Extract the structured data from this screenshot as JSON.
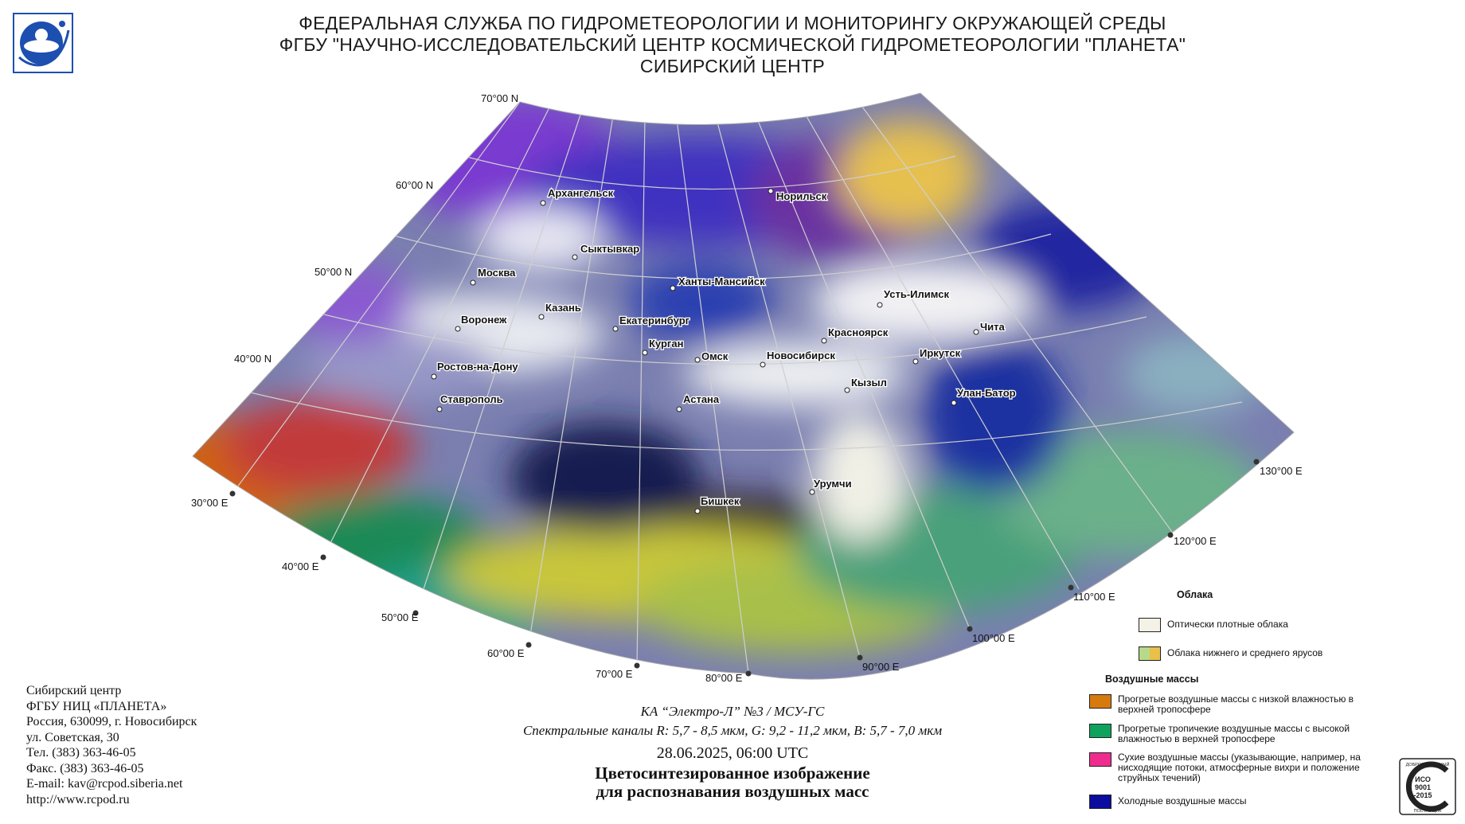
{
  "header": {
    "line1": "ФЕДЕРАЛЬНАЯ СЛУЖБА ПО ГИДРОМЕТЕОРОЛОГИИ И МОНИТОРИНГУ ОКРУЖАЮЩЕЙ СРЕДЫ",
    "line2": "ФГБУ \"НАУЧНО-ИССЛЕДОВАТЕЛЬСКИЙ ЦЕНТР КОСМИЧЕСКОЙ ГИДРОМЕТЕОРОЛОГИИ \"ПЛАНЕТА\"",
    "line3": "СИБИРСКИЙ ЦЕНТР"
  },
  "graticule": {
    "lat_labels": [
      "70°00 N",
      "60°00 N",
      "50°00 N",
      "40°00 N"
    ],
    "lon_labels": [
      "30°00 E",
      "40°00 E",
      "50°00 E",
      "60°00 E",
      "70°00 E",
      "80°00 E",
      "90°00 E",
      "100°00 E",
      "110°00 E",
      "120°00 E",
      "130°00 E"
    ]
  },
  "cities": [
    "Архангельск",
    "Норильск",
    "Сыктывкар",
    "Москва",
    "Ханты-Мансийск",
    "Усть-Илимск",
    "Казань",
    "Воронеж",
    "Екатеринбург",
    "Красноярск",
    "Чита",
    "Курган",
    "Омск",
    "Новосибирск",
    "Иркутск",
    "Ростов-на-Дону",
    "Кызыл",
    "Улан-Батор",
    "Ставрополь",
    "Астана",
    "Урумчи",
    "Бишкек"
  ],
  "contacts": {
    "line1": "Сибирский центр",
    "line2": "ФГБУ НИЦ «ПЛАНЕТА»",
    "line3": "Россия, 630099, г. Новосибирск",
    "line4": "ул. Советская, 30",
    "line5": "Тел. (383) 363-46-05",
    "line6": "Факс. (383) 363-46-05",
    "line7": "E-mail: kav@rcpod.siberia.net",
    "line8": "http://www.rcpod.ru"
  },
  "caption": {
    "satellite": "КА “Электро-Л” №3 / МСУ-ГС",
    "channels": "Спектральные каналы R: 5,7 - 8,5 мкм, G: 9,2 - 11,2 мкм, B: 5,7 - 7,0 мкм",
    "datetime": "28.06.2025, 06:00 UTC",
    "title1": "Цветосинтезированное изображение",
    "title2": "для распознавания воздушных масс"
  },
  "legend": {
    "clouds_header": "Облака",
    "clouds_items": [
      {
        "label": "Оптически плотные облака",
        "color": "#f4f2e6"
      },
      {
        "label": "Облака нижнего и среднего ярусов",
        "color": "#b9d98a",
        "color2": "#e8c04a"
      }
    ],
    "airmass_header": "Воздушные массы",
    "airmass_items": [
      {
        "label": "Прогретые воздушные массы с низкой влажностью в верхней тропосфере",
        "color": "#d77a0e"
      },
      {
        "label": "Прогретые тропичекие воздушные массы с высокой влажностью в верхней тропосфере",
        "color": "#0fa25c"
      },
      {
        "label": "Сухие воздушные массы (указывающие, например, на нисходящие потоки, атмосферные вихри и положение струйных течений)",
        "color": "#ef2c8e"
      },
      {
        "label": "Холодные воздушные массы",
        "color": "#0a0d9e"
      }
    ]
  },
  "iso_badge": {
    "top": "ДОБРОСОВЕСТНЫЙ",
    "line1": "ИСО",
    "line2": "9001",
    "line3": "-2015",
    "bottom": "ПОСТАВЩИК"
  },
  "colors": {
    "header_text": "#1a1a1a",
    "logo_blue": "#1d4fb0",
    "graticule": "#c8c8c8"
  }
}
